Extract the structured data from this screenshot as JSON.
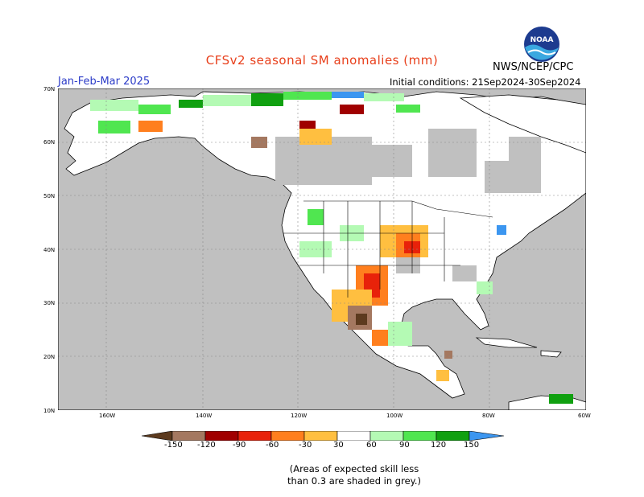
{
  "title": "CFSv2 seasonal SM anomalies (mm)",
  "agency": "NWS/NCEP/CPC",
  "logo": {
    "text": "NOAA",
    "icon": "noaa-logo-icon"
  },
  "period": "Jan-Feb-Mar 2025",
  "initial_conditions": "Initial conditions: 21Sep2024-30Sep2024",
  "lat_labels": [
    "70N",
    "60N",
    "50N",
    "40N",
    "30N",
    "20N",
    "10N"
  ],
  "lon_labels": [
    "160W",
    "140W",
    "120W",
    "100W",
    "80W",
    "60W"
  ],
  "colorbar": {
    "labels": [
      "-150",
      "-120",
      "-90",
      "-60",
      "-30",
      "30",
      "60",
      "90",
      "120",
      "150"
    ],
    "colors": [
      "#5c3a1e",
      "#a47860",
      "#a00000",
      "#e8220a",
      "#ff7f1e",
      "#ffbf40",
      "#ffffff",
      "#b4fab4",
      "#50e650",
      "#10a010",
      "#3c96f0",
      "#2060d8"
    ]
  },
  "colors": {
    "land": "#ffffff",
    "grey_mask": "#c0c0c0",
    "ocean": "#c0c0c0"
  },
  "note": [
    "(Areas of expected skill less",
    "than 0.3 are shaded in grey.)"
  ]
}
